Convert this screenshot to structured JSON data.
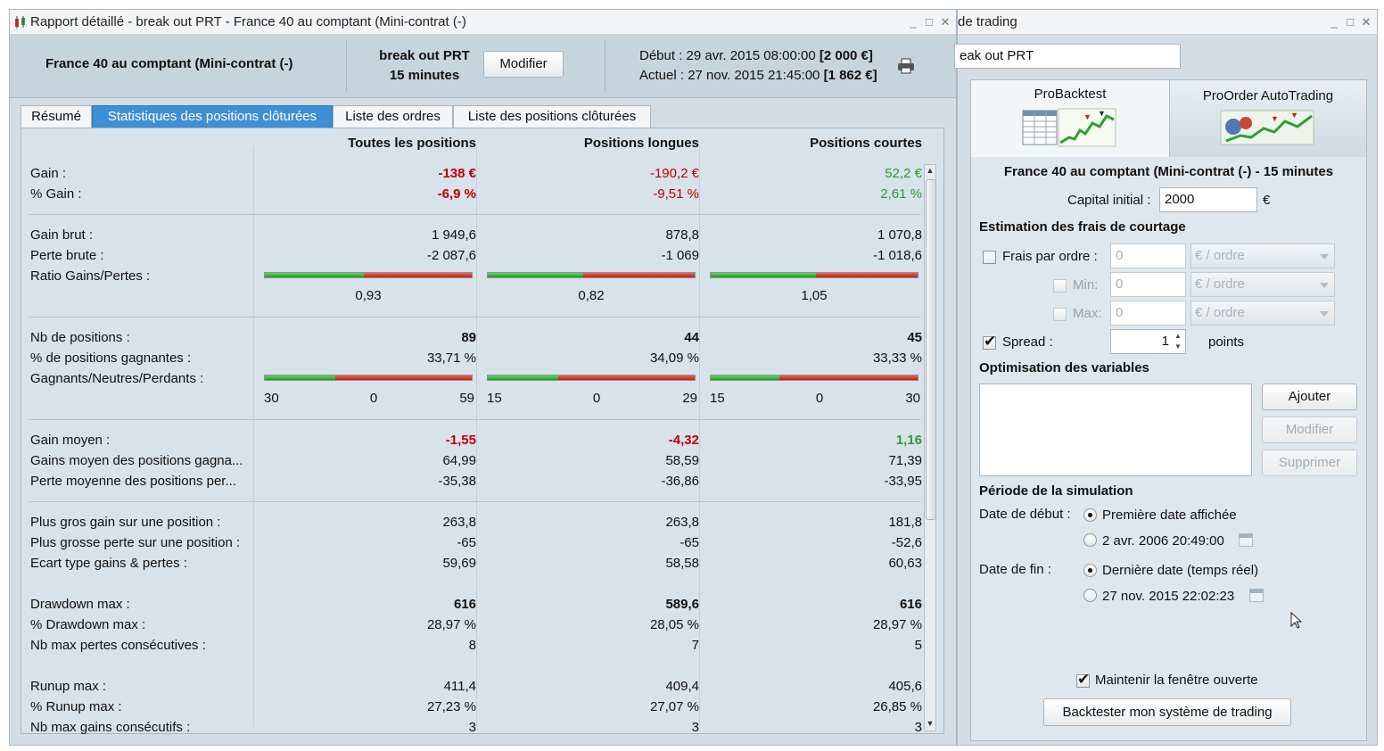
{
  "left_window": {
    "title": "Rapport détaillé - break out PRT - France 40 au comptant (Mini-contrat  (-)",
    "info": {
      "instrument": "France 40 au comptant (Mini-contrat  (-)",
      "system_name": "break out PRT",
      "timeframe": "15 minutes",
      "modify_label": "Modifier",
      "start_label": "Début :",
      "start_date": "29 avr. 2015 08:00:00",
      "start_capital": "[2 000 €]",
      "current_label": "Actuel :",
      "current_date": "27 nov. 2015 21:45:00",
      "current_capital": "[1 862 €]"
    },
    "tabs": [
      "Résumé",
      "Statistiques des positions clôturées",
      "Liste des ordres",
      "Liste des positions clôturées"
    ],
    "active_tab": "Statistiques des positions clôturées",
    "columns": [
      "Toutes les positions",
      "Positions longues",
      "Positions courtes"
    ],
    "stats": {
      "gain": {
        "label": "Gain :",
        "values": [
          "-138 €",
          "-190,2 €",
          "52,2 €"
        ]
      },
      "gain_pct": {
        "label": "% Gain :",
        "values": [
          "-6,9 %",
          "-9,51 %",
          "2,61 %"
        ]
      },
      "gross_gain": {
        "label": "Gain brut :",
        "values": [
          "1 949,6",
          "878,8",
          "1 070,8"
        ]
      },
      "gross_loss": {
        "label": "Perte brute :",
        "values": [
          "-2 087,6",
          "-1 069",
          "-1 018,6"
        ]
      },
      "ratio": {
        "label": "Ratio Gains/Pertes :",
        "values": [
          "0,93",
          "0,82",
          "1,05"
        ],
        "fractions": [
          0.48,
          0.46,
          0.51
        ]
      },
      "nb_positions": {
        "label": "Nb de positions :",
        "values": [
          "89",
          "44",
          "45"
        ]
      },
      "winning_pct": {
        "label": "% de positions gagnantes :",
        "values": [
          "33,71 %",
          "34,09 %",
          "33,33 %"
        ]
      },
      "gnp": {
        "label": "Gagnants/Neutres/Perdants :",
        "all": [
          "30",
          "0",
          "59"
        ],
        "long": [
          "15",
          "0",
          "29"
        ],
        "short": [
          "15",
          "0",
          "30"
        ],
        "fractions": [
          0.34,
          0.34,
          0.33
        ]
      },
      "avg_gain": {
        "label": "Gain moyen :",
        "values": [
          "-1,55",
          "-4,32",
          "1,16"
        ]
      },
      "avg_win": {
        "label": "Gains moyen des positions gagna...",
        "values": [
          "64,99",
          "58,59",
          "71,39"
        ]
      },
      "avg_loss": {
        "label": "Perte moyenne des positions per...",
        "values": [
          "-35,38",
          "-36,86",
          "-33,95"
        ]
      },
      "max_gain": {
        "label": "Plus gros gain sur une position :",
        "values": [
          "263,8",
          "263,8",
          "181,8"
        ]
      },
      "max_loss": {
        "label": "Plus grosse perte sur une position :",
        "values": [
          "-65",
          "-65",
          "-52,6"
        ]
      },
      "stddev": {
        "label": "Ecart type gains & pertes :",
        "values": [
          "59,69",
          "58,58",
          "60,63"
        ]
      },
      "drawdown": {
        "label": "Drawdown max :",
        "values": [
          "616",
          "589,6",
          "616"
        ]
      },
      "drawdown_pct": {
        "label": "% Drawdown max :",
        "values": [
          "28,97 %",
          "28,05 %",
          "28,97 %"
        ]
      },
      "max_consec_losses": {
        "label": "Nb max pertes consécutives :",
        "values": [
          "8",
          "7",
          "5"
        ]
      },
      "runup": {
        "label": "Runup max :",
        "values": [
          "411,4",
          "409,4",
          "405,6"
        ]
      },
      "runup_pct": {
        "label": "% Runup max :",
        "values": [
          "27,23 %",
          "27,07 %",
          "26,85 %"
        ]
      },
      "max_consec_gains": {
        "label": "Nb max gains consécutifs :",
        "values": [
          "3",
          "3",
          "3"
        ]
      }
    }
  },
  "right_window": {
    "title": "de trading",
    "system_field": "eak out PRT",
    "tab_probacktest": "ProBacktest",
    "tab_proorder": "ProOrder AutoTrading",
    "instrument_heading": "France 40 au comptant (Mini-contrat  (-) - 15 minutes",
    "capital_label": "Capital initial :",
    "capital_value": "2000",
    "capital_unit": "€",
    "fees_title": "Estimation des frais de courtage",
    "fee_per_order_label": "Frais par ordre :",
    "fee_per_order_value": "0",
    "fee_min_label": "Min:",
    "fee_min_value": "0",
    "fee_max_label": "Max:",
    "fee_max_value": "0",
    "fee_unit": "€ / ordre",
    "spread_label": "Spread :",
    "spread_value": "1",
    "spread_unit": "points",
    "optim_title": "Optimisation des variables",
    "add_label": "Ajouter",
    "modify_label": "Modifier",
    "delete_label": "Supprimer",
    "period_title": "Période de la simulation",
    "start_label": "Date de début :",
    "start_opt1": "Première date affichée",
    "start_opt2": "2 avr. 2006 20:49:00",
    "end_label": "Date de fin :",
    "end_opt1": "Dernière date (temps réel)",
    "end_opt2": "27 nov. 2015 22:02:23",
    "keep_open_label": "Maintenir la fenêtre ouverte",
    "backtest_button": "Backtester mon système de trading"
  },
  "colors": {
    "red": "#c00000",
    "green": "#2e9b2e",
    "active_tab": "#3e8fd4"
  }
}
